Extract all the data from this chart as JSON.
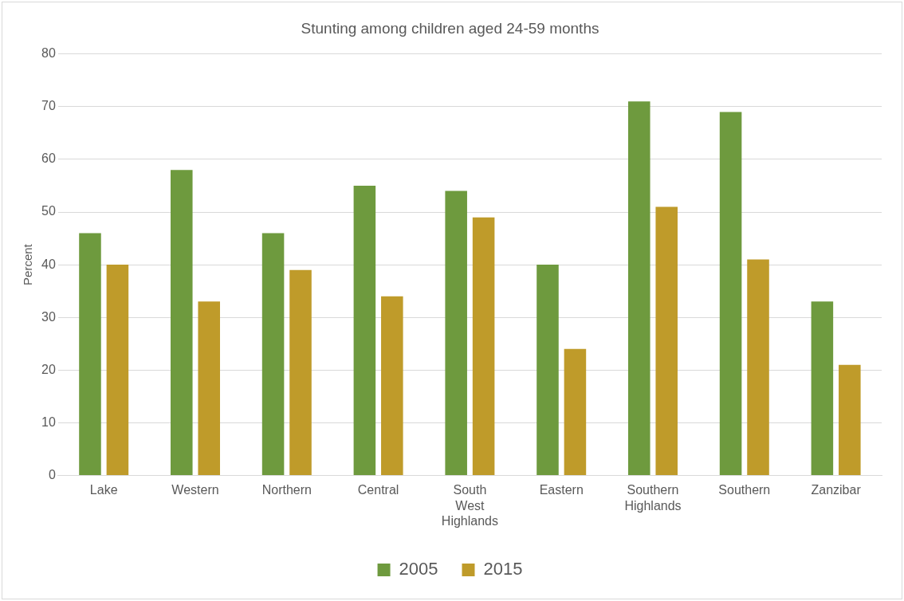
{
  "chart_data": {
    "type": "bar",
    "title": "Stunting among children aged 24-59 months",
    "ylabel": "Percent",
    "categories": [
      "Lake",
      "Western",
      "Northern",
      "Central",
      "South West Highlands",
      "Eastern",
      "Southern Highlands",
      "Southern",
      "Zanzibar"
    ],
    "series": [
      {
        "name": "2005",
        "color": "#6e9a3e",
        "values": [
          46,
          58,
          46,
          55,
          54,
          40,
          71,
          69,
          33
        ]
      },
      {
        "name": "2015",
        "color": "#bf9b2a",
        "values": [
          40,
          33,
          39,
          34,
          49,
          24,
          51,
          41,
          21
        ]
      }
    ],
    "ylim": [
      0,
      80
    ],
    "yticks": [
      0,
      10,
      20,
      30,
      40,
      50,
      60,
      70,
      80
    ],
    "grid": "y",
    "legend": "bottom"
  }
}
